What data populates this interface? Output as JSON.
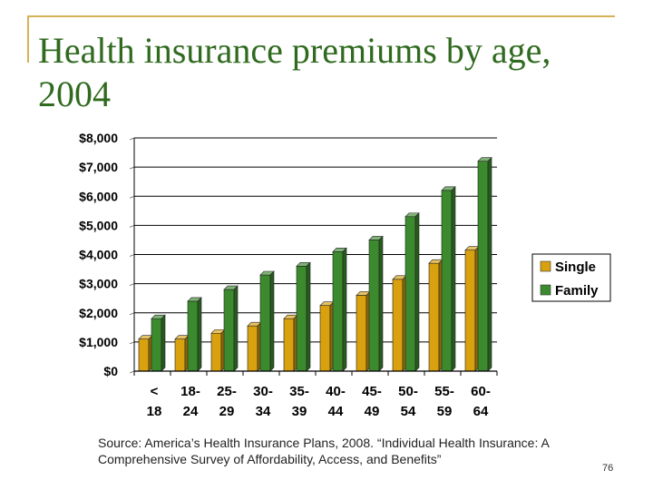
{
  "slide": {
    "title": "Health insurance premiums by age, 2004",
    "source": "Source: America’s Health Insurance Plans, 2008. “Individual Health Insurance: A Comprehensive Survey of Affordability, Access, and Benefits”",
    "page_number": "76",
    "accent_color": "#d4b256",
    "title_color": "#2f6a1f"
  },
  "chart_data": {
    "type": "bar",
    "title": "",
    "xlabel": "",
    "ylabel": "",
    "ylim": [
      0,
      8000
    ],
    "yticks": [
      0,
      1000,
      2000,
      3000,
      4000,
      5000,
      6000,
      7000,
      8000
    ],
    "ytick_labels": [
      "$0",
      "$1,000",
      "$2,000",
      "$3,000",
      "$4,000",
      "$5,000",
      "$6,000",
      "$7,000",
      "$8,000"
    ],
    "categories": [
      "< 18",
      "18- 24",
      "25- 29",
      "30- 34",
      "35- 39",
      "40- 44",
      "45- 49",
      "50- 54",
      "55- 59",
      "60- 64"
    ],
    "category_lines": [
      [
        "<",
        "18"
      ],
      [
        "18-",
        "24"
      ],
      [
        "25-",
        "29"
      ],
      [
        "30-",
        "34"
      ],
      [
        "35-",
        "39"
      ],
      [
        "40-",
        "44"
      ],
      [
        "45-",
        "49"
      ],
      [
        "50-",
        "54"
      ],
      [
        "55-",
        "59"
      ],
      [
        "60-",
        "64"
      ]
    ],
    "grid": true,
    "legend_position": "right",
    "series": [
      {
        "name": "Single",
        "color": "#d9a10e",
        "values": [
          1100,
          1100,
          1300,
          1550,
          1800,
          2250,
          2600,
          3150,
          3700,
          4150
        ]
      },
      {
        "name": "Family",
        "color": "#3c8a2e",
        "values": [
          1800,
          2400,
          2800,
          3300,
          3600,
          4100,
          4500,
          5300,
          6200,
          7200
        ]
      }
    ]
  }
}
